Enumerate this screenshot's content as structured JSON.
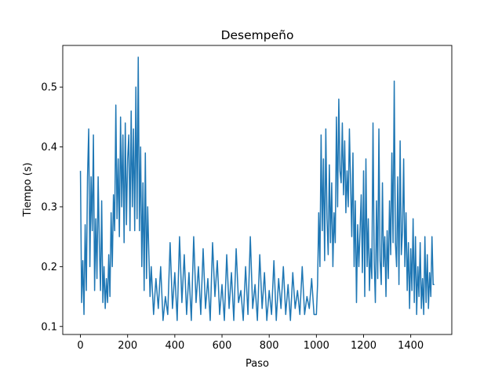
{
  "chart_data": {
    "type": "line",
    "title": "Desempeño",
    "xlabel": "Paso",
    "ylabel": "Tiempo (s)",
    "xlim": [
      -75,
      1574
    ],
    "ylim": [
      0.0866,
      0.5696
    ],
    "xticks": [
      0,
      200,
      400,
      600,
      800,
      1000,
      1200,
      1400
    ],
    "yticks": [
      0.1,
      0.2,
      0.3,
      0.4,
      0.5
    ],
    "grid": false,
    "series": [
      {
        "color": "#1f77b4",
        "points": [
          [
            0,
            0.36
          ],
          [
            5,
            0.14
          ],
          [
            10,
            0.21
          ],
          [
            15,
            0.12
          ],
          [
            20,
            0.27
          ],
          [
            25,
            0.16
          ],
          [
            30,
            0.35
          ],
          [
            35,
            0.43
          ],
          [
            40,
            0.2
          ],
          [
            45,
            0.35
          ],
          [
            50,
            0.26
          ],
          [
            55,
            0.42
          ],
          [
            60,
            0.16
          ],
          [
            65,
            0.28
          ],
          [
            70,
            0.18
          ],
          [
            75,
            0.35
          ],
          [
            80,
            0.24
          ],
          [
            85,
            0.16
          ],
          [
            90,
            0.31
          ],
          [
            95,
            0.14
          ],
          [
            100,
            0.2
          ],
          [
            105,
            0.13
          ],
          [
            110,
            0.18
          ],
          [
            115,
            0.14
          ],
          [
            120,
            0.22
          ],
          [
            125,
            0.15
          ],
          [
            130,
            0.29
          ],
          [
            135,
            0.2
          ],
          [
            140,
            0.32
          ],
          [
            145,
            0.26
          ],
          [
            150,
            0.47
          ],
          [
            155,
            0.28
          ],
          [
            160,
            0.38
          ],
          [
            165,
            0.25
          ],
          [
            170,
            0.45
          ],
          [
            175,
            0.3
          ],
          [
            180,
            0.42
          ],
          [
            185,
            0.24
          ],
          [
            190,
            0.44
          ],
          [
            195,
            0.27
          ],
          [
            200,
            0.38
          ],
          [
            205,
            0.42
          ],
          [
            210,
            0.26
          ],
          [
            215,
            0.46
          ],
          [
            220,
            0.3
          ],
          [
            225,
            0.43
          ],
          [
            230,
            0.26
          ],
          [
            235,
            0.5
          ],
          [
            240,
            0.28
          ],
          [
            245,
            0.55
          ],
          [
            250,
            0.26
          ],
          [
            255,
            0.4
          ],
          [
            260,
            0.2
          ],
          [
            265,
            0.34
          ],
          [
            270,
            0.16
          ],
          [
            275,
            0.39
          ],
          [
            280,
            0.18
          ],
          [
            285,
            0.3
          ],
          [
            290,
            0.22
          ],
          [
            295,
            0.15
          ],
          [
            300,
            0.2
          ],
          [
            310,
            0.12
          ],
          [
            320,
            0.18
          ],
          [
            330,
            0.13
          ],
          [
            340,
            0.2
          ],
          [
            350,
            0.11
          ],
          [
            360,
            0.15
          ],
          [
            370,
            0.12
          ],
          [
            380,
            0.24
          ],
          [
            390,
            0.13
          ],
          [
            400,
            0.19
          ],
          [
            410,
            0.11
          ],
          [
            420,
            0.25
          ],
          [
            430,
            0.14
          ],
          [
            440,
            0.22
          ],
          [
            450,
            0.12
          ],
          [
            460,
            0.19
          ],
          [
            470,
            0.11
          ],
          [
            480,
            0.25
          ],
          [
            490,
            0.14
          ],
          [
            500,
            0.2
          ],
          [
            510,
            0.12
          ],
          [
            520,
            0.23
          ],
          [
            530,
            0.13
          ],
          [
            540,
            0.18
          ],
          [
            550,
            0.11
          ],
          [
            560,
            0.24
          ],
          [
            570,
            0.15
          ],
          [
            580,
            0.21
          ],
          [
            590,
            0.12
          ],
          [
            600,
            0.17
          ],
          [
            610,
            0.11
          ],
          [
            620,
            0.22
          ],
          [
            630,
            0.13
          ],
          [
            640,
            0.19
          ],
          [
            650,
            0.11
          ],
          [
            660,
            0.23
          ],
          [
            670,
            0.14
          ],
          [
            680,
            0.16
          ],
          [
            690,
            0.11
          ],
          [
            700,
            0.2
          ],
          [
            710,
            0.12
          ],
          [
            720,
            0.25
          ],
          [
            730,
            0.13
          ],
          [
            740,
            0.17
          ],
          [
            750,
            0.11
          ],
          [
            760,
            0.22
          ],
          [
            770,
            0.13
          ],
          [
            780,
            0.19
          ],
          [
            790,
            0.11
          ],
          [
            800,
            0.16
          ],
          [
            810,
            0.12
          ],
          [
            820,
            0.21
          ],
          [
            830,
            0.11
          ],
          [
            840,
            0.18
          ],
          [
            850,
            0.13
          ],
          [
            860,
            0.2
          ],
          [
            870,
            0.12
          ],
          [
            880,
            0.17
          ],
          [
            890,
            0.11
          ],
          [
            900,
            0.19
          ],
          [
            910,
            0.13
          ],
          [
            920,
            0.16
          ],
          [
            930,
            0.12
          ],
          [
            940,
            0.2
          ],
          [
            950,
            0.12
          ],
          [
            960,
            0.15
          ],
          [
            970,
            0.13
          ],
          [
            980,
            0.18
          ],
          [
            990,
            0.12
          ],
          [
            1000,
            0.12
          ],
          [
            1005,
            0.17
          ],
          [
            1010,
            0.29
          ],
          [
            1015,
            0.2
          ],
          [
            1020,
            0.42
          ],
          [
            1025,
            0.26
          ],
          [
            1030,
            0.38
          ],
          [
            1035,
            0.21
          ],
          [
            1040,
            0.43
          ],
          [
            1045,
            0.28
          ],
          [
            1050,
            0.22
          ],
          [
            1055,
            0.37
          ],
          [
            1060,
            0.24
          ],
          [
            1065,
            0.34
          ],
          [
            1070,
            0.2
          ],
          [
            1075,
            0.29
          ],
          [
            1080,
            0.24
          ],
          [
            1085,
            0.45
          ],
          [
            1090,
            0.3
          ],
          [
            1095,
            0.48
          ],
          [
            1100,
            0.36
          ],
          [
            1105,
            0.34
          ],
          [
            1110,
            0.44
          ],
          [
            1115,
            0.32
          ],
          [
            1120,
            0.41
          ],
          [
            1125,
            0.29
          ],
          [
            1130,
            0.36
          ],
          [
            1135,
            0.3
          ],
          [
            1140,
            0.43
          ],
          [
            1145,
            0.34
          ],
          [
            1150,
            0.25
          ],
          [
            1155,
            0.39
          ],
          [
            1160,
            0.2
          ],
          [
            1165,
            0.31
          ],
          [
            1170,
            0.14
          ],
          [
            1175,
            0.27
          ],
          [
            1180,
            0.2
          ],
          [
            1185,
            0.26
          ],
          [
            1190,
            0.32
          ],
          [
            1195,
            0.19
          ],
          [
            1200,
            0.36
          ],
          [
            1205,
            0.15
          ],
          [
            1210,
            0.38
          ],
          [
            1215,
            0.2
          ],
          [
            1220,
            0.28
          ],
          [
            1225,
            0.16
          ],
          [
            1230,
            0.23
          ],
          [
            1235,
            0.18
          ],
          [
            1240,
            0.44
          ],
          [
            1245,
            0.21
          ],
          [
            1250,
            0.14
          ],
          [
            1255,
            0.31
          ],
          [
            1260,
            0.18
          ],
          [
            1265,
            0.43
          ],
          [
            1270,
            0.21
          ],
          [
            1275,
            0.17
          ],
          [
            1280,
            0.34
          ],
          [
            1285,
            0.2
          ],
          [
            1290,
            0.25
          ],
          [
            1295,
            0.15
          ],
          [
            1300,
            0.26
          ],
          [
            1305,
            0.18
          ],
          [
            1310,
            0.31
          ],
          [
            1315,
            0.22
          ],
          [
            1320,
            0.39
          ],
          [
            1325,
            0.24
          ],
          [
            1330,
            0.51
          ],
          [
            1335,
            0.24
          ],
          [
            1340,
            0.2
          ],
          [
            1345,
            0.35
          ],
          [
            1350,
            0.17
          ],
          [
            1355,
            0.41
          ],
          [
            1360,
            0.22
          ],
          [
            1365,
            0.26
          ],
          [
            1370,
            0.38
          ],
          [
            1375,
            0.2
          ],
          [
            1380,
            0.29
          ],
          [
            1385,
            0.16
          ],
          [
            1390,
            0.24
          ],
          [
            1395,
            0.13
          ],
          [
            1400,
            0.23
          ],
          [
            1405,
            0.16
          ],
          [
            1410,
            0.28
          ],
          [
            1415,
            0.14
          ],
          [
            1420,
            0.25
          ],
          [
            1425,
            0.12
          ],
          [
            1430,
            0.2
          ],
          [
            1435,
            0.15
          ],
          [
            1440,
            0.24
          ],
          [
            1445,
            0.13
          ],
          [
            1450,
            0.18
          ],
          [
            1455,
            0.12
          ],
          [
            1460,
            0.25
          ],
          [
            1465,
            0.14
          ],
          [
            1470,
            0.22
          ],
          [
            1475,
            0.13
          ],
          [
            1480,
            0.19
          ],
          [
            1485,
            0.15
          ],
          [
            1490,
            0.25
          ],
          [
            1495,
            0.17
          ],
          [
            1500,
            0.17
          ]
        ]
      }
    ]
  }
}
